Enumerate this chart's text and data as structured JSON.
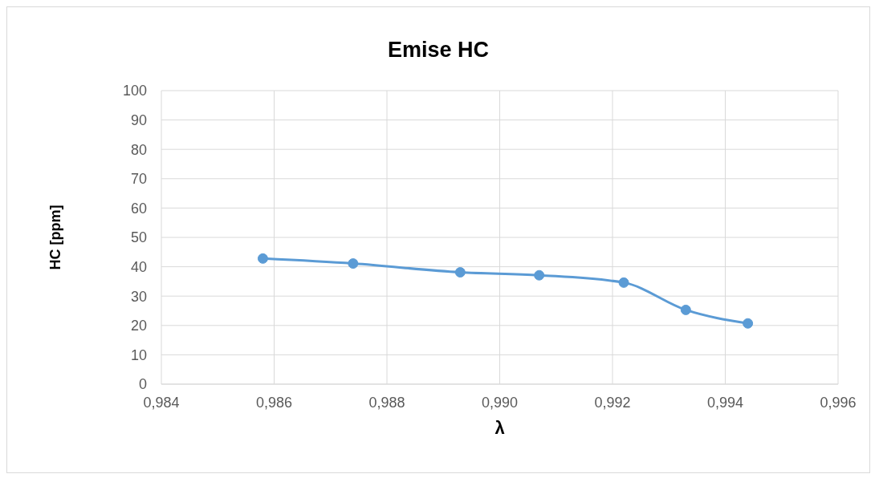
{
  "chart_data": {
    "type": "line",
    "title": "Emise HC",
    "xlabel": "λ",
    "ylabel": "HC [ppm]",
    "x": [
      0.9858,
      0.9874,
      0.9893,
      0.9907,
      0.9922,
      0.9933,
      0.9944
    ],
    "series": [
      {
        "color": "#5b9bd5",
        "values": [
          42.8,
          41.1,
          38.1,
          37.1,
          34.6,
          25.3,
          20.7
        ]
      }
    ],
    "xlim": [
      0.984,
      0.996
    ],
    "xticks": [
      {
        "value": 0.984,
        "label": "0,984"
      },
      {
        "value": 0.986,
        "label": "0,986"
      },
      {
        "value": 0.988,
        "label": "0,988"
      },
      {
        "value": 0.99,
        "label": "0,990"
      },
      {
        "value": 0.992,
        "label": "0,992"
      },
      {
        "value": 0.994,
        "label": "0,994"
      },
      {
        "value": 0.996,
        "label": "0,996"
      }
    ],
    "ylim": [
      0,
      100
    ],
    "yticks": [
      0,
      10,
      20,
      30,
      40,
      50,
      60,
      70,
      80,
      90,
      100
    ],
    "grid": true,
    "marker": "circle",
    "line_style": "solid"
  }
}
